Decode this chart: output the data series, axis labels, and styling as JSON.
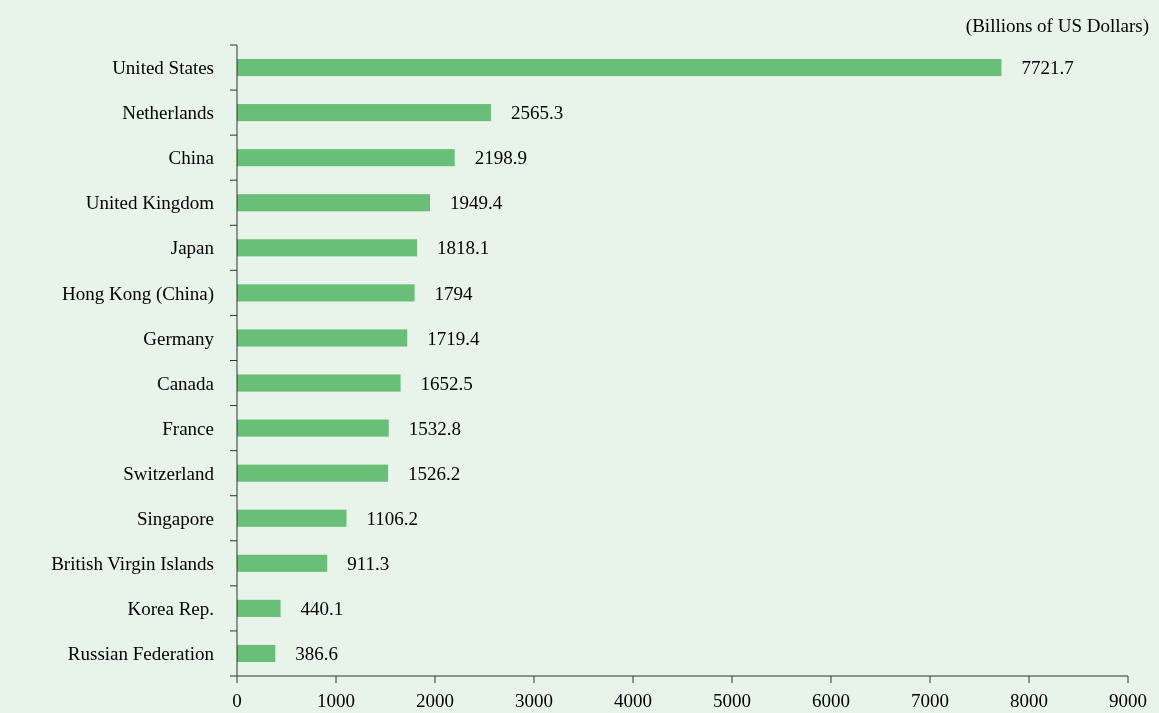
{
  "chart_data": {
    "type": "bar",
    "orientation": "horizontal",
    "xlabel": "(Billions of US Dollars)",
    "categories": [
      "United States",
      "Netherlands",
      "China",
      "United Kingdom",
      "Japan",
      "Hong Kong (China)",
      "Germany",
      "Canada",
      "France",
      "Switzerland",
      "Singapore",
      "British Virgin Islands",
      "Korea Rep.",
      "Russian Federation"
    ],
    "values": [
      7721.7,
      2565.3,
      2198.9,
      1949.4,
      1818.1,
      1794,
      1719.4,
      1652.5,
      1532.8,
      1526.2,
      1106.2,
      911.3,
      440.1,
      386.6
    ],
    "color": "#6abf78",
    "xlim": [
      0,
      9000
    ],
    "xticks": [
      0,
      1000,
      2000,
      3000,
      4000,
      5000,
      6000,
      7000,
      8000,
      9000
    ],
    "data_labels": true
  }
}
